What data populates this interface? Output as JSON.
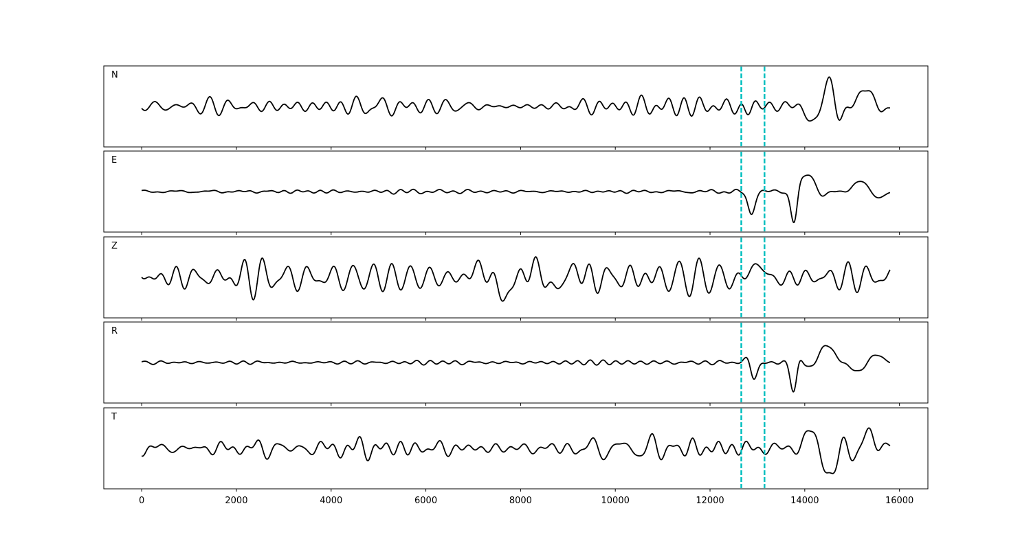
{
  "chart_data": {
    "type": "line",
    "layout": "stacked-panels",
    "xlim": [
      -800,
      16600
    ],
    "xticks": [
      0,
      2000,
      4000,
      6000,
      8000,
      10000,
      12000,
      14000,
      16000
    ],
    "x_range": [
      0,
      15800
    ],
    "line_color": "#000000",
    "marker_color": "#00BFBF",
    "markers": [
      {
        "x": 12660,
        "style": "dashed"
      },
      {
        "x": 13150,
        "style": "dashed"
      }
    ],
    "grid": false,
    "panels": [
      {
        "label": "N",
        "ylim": [
          -1.15,
          1.15
        ],
        "noise_level": 0.32,
        "events": [
          {
            "x": 12850,
            "amplitude": 0.65,
            "width": 130
          },
          {
            "x": 14200,
            "amplitude": 0.55,
            "width": 300
          },
          {
            "x": 14640,
            "amplitude": 1.05,
            "width": 160
          },
          {
            "x": 15150,
            "amplitude": 0.55,
            "width": 300
          }
        ]
      },
      {
        "label": "E",
        "ylim": [
          -1.15,
          1.15
        ],
        "noise_level": 0.07,
        "events": [
          {
            "x": 12880,
            "amplitude": 0.75,
            "width": 110
          },
          {
            "x": 13800,
            "amplitude": 1.1,
            "width": 110
          },
          {
            "x": 14150,
            "amplitude": 0.55,
            "width": 250
          },
          {
            "x": 15300,
            "amplitude": 0.35,
            "width": 350
          }
        ]
      },
      {
        "label": "Z",
        "ylim": [
          -1.15,
          1.15
        ],
        "noise_level": 0.52,
        "events": [
          {
            "x": 7600,
            "amplitude": 0.5,
            "width": 600
          },
          {
            "x": 8850,
            "amplitude": 0.35,
            "width": 500
          },
          {
            "x": 13000,
            "amplitude": 0.35,
            "width": 400
          }
        ]
      },
      {
        "label": "R",
        "ylim": [
          -1.15,
          1.15
        ],
        "noise_level": 0.07,
        "events": [
          {
            "x": 12880,
            "amplitude": 0.9,
            "width": 120
          },
          {
            "x": 13800,
            "amplitude": 1.2,
            "width": 110
          },
          {
            "x": 14400,
            "amplitude": 0.55,
            "width": 300
          },
          {
            "x": 15300,
            "amplitude": 0.35,
            "width": 350
          }
        ]
      },
      {
        "label": "T",
        "ylim": [
          -1.15,
          1.15
        ],
        "noise_level": 0.32,
        "events": [
          {
            "x": 14200,
            "amplitude": 0.55,
            "width": 300
          },
          {
            "x": 14650,
            "amplitude": 1.0,
            "width": 180
          },
          {
            "x": 15200,
            "amplitude": 0.6,
            "width": 300
          }
        ]
      }
    ]
  }
}
